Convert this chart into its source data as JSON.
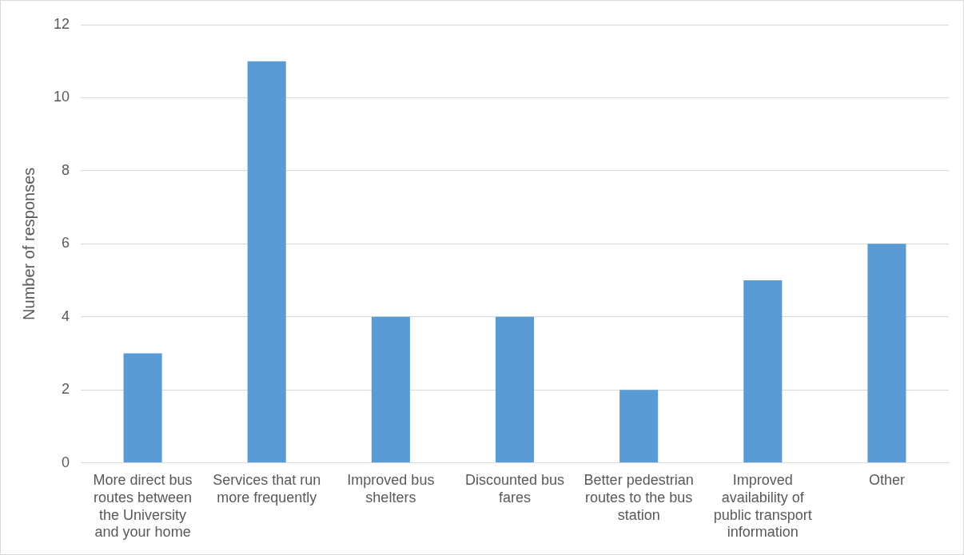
{
  "chart_data": {
    "type": "bar",
    "ylabel": "Number of responses",
    "categories": [
      "More direct bus routes between the University and your home",
      "Services that run more frequently",
      "Improved bus shelters",
      "Discounted bus fares",
      "Better pedestrian routes to the bus station",
      "Improved availability of public transport information",
      "Other"
    ],
    "values": [
      3,
      11,
      4,
      4,
      2,
      5,
      6
    ],
    "color": "#5b9bd5",
    "ylim": [
      0,
      12
    ],
    "yticks": [
      0,
      2,
      4,
      6,
      8,
      10,
      12
    ],
    "grid": "y",
    "legend": false
  }
}
